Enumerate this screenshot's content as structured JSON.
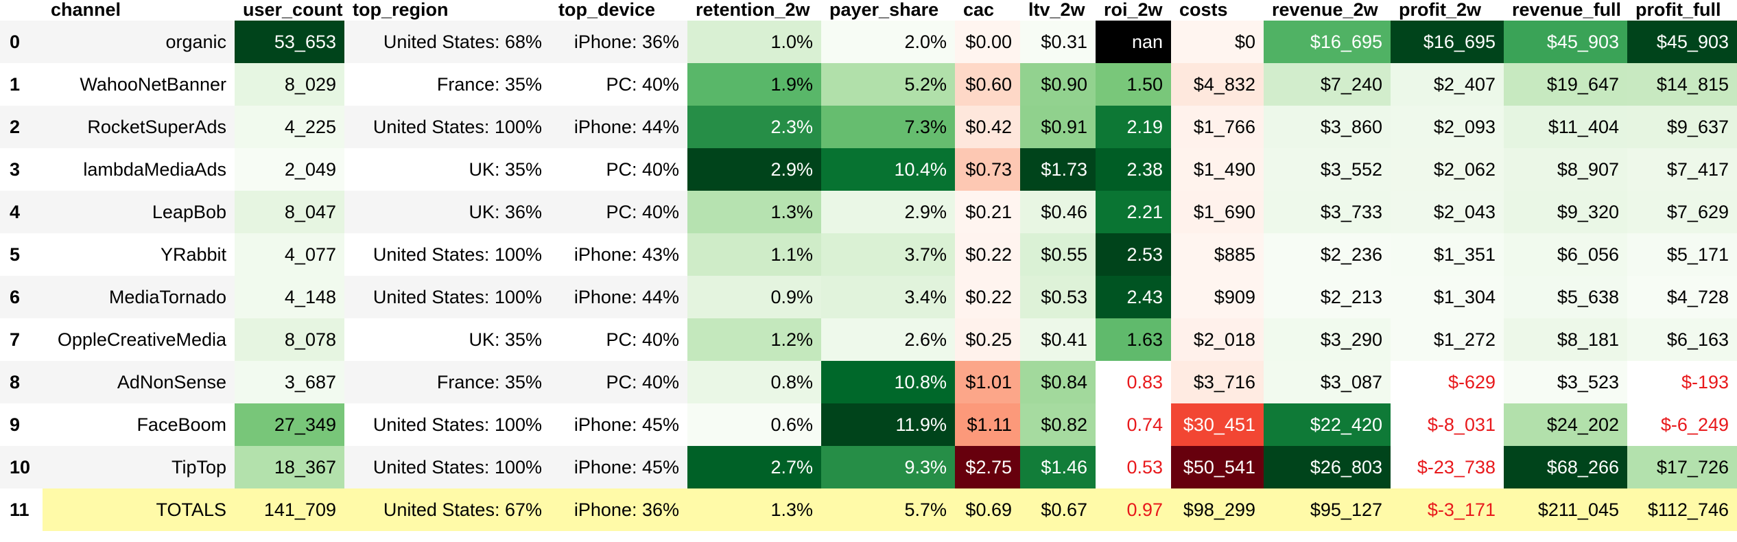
{
  "columns": [
    "",
    "channel",
    "user_count",
    "top_region",
    "top_device",
    "retention_2w",
    "payer_share",
    "cac",
    "ltv_2w",
    "roi_2w",
    "costs",
    "revenue_2w",
    "profit_2w",
    "revenue_full",
    "profit_full"
  ],
  "colors": {
    "header_bg": "#ffffff",
    "row_stripe": "#f5f5f5",
    "totals_bg": "#fffaa8",
    "negative_text": "#e8191c",
    "nan_bg": "#000000",
    "greens": [
      "#f7fcf5",
      "#e5f5e0",
      "#c7e9c0",
      "#a1d99b",
      "#74c476",
      "#41ab5d",
      "#238b45",
      "#006d2c",
      "#00441b"
    ],
    "reds": [
      "#fff5f0",
      "#fee0d2",
      "#fcbba1",
      "#fc9272",
      "#fb6a4a",
      "#ef3b2c",
      "#cb181d",
      "#a50f15",
      "#67000d"
    ]
  },
  "rows": [
    {
      "idx": "0",
      "channel": "organic",
      "user_count": "53_653",
      "top_region": "United States: 68%",
      "top_device": "iPhone: 36%",
      "retention_2w": "1.0%",
      "payer_share": "2.0%",
      "cac": "$0.00",
      "ltv_2w": "$0.31",
      "roi_2w": "nan",
      "costs": "$0",
      "revenue_2w": "$16_695",
      "profit_2w": "$16_695",
      "revenue_full": "$45_903",
      "profit_full": "$45_903"
    },
    {
      "idx": "1",
      "channel": "WahooNetBanner",
      "user_count": "8_029",
      "top_region": "France: 35%",
      "top_device": "PC: 40%",
      "retention_2w": "1.9%",
      "payer_share": "5.2%",
      "cac": "$0.60",
      "ltv_2w": "$0.90",
      "roi_2w": "1.50",
      "costs": "$4_832",
      "revenue_2w": "$7_240",
      "profit_2w": "$2_407",
      "revenue_full": "$19_647",
      "profit_full": "$14_815"
    },
    {
      "idx": "2",
      "channel": "RocketSuperAds",
      "user_count": "4_225",
      "top_region": "United States: 100%",
      "top_device": "iPhone: 44%",
      "retention_2w": "2.3%",
      "payer_share": "7.3%",
      "cac": "$0.42",
      "ltv_2w": "$0.91",
      "roi_2w": "2.19",
      "costs": "$1_766",
      "revenue_2w": "$3_860",
      "profit_2w": "$2_093",
      "revenue_full": "$11_404",
      "profit_full": "$9_637"
    },
    {
      "idx": "3",
      "channel": "lambdaMediaAds",
      "user_count": "2_049",
      "top_region": "UK: 35%",
      "top_device": "PC: 40%",
      "retention_2w": "2.9%",
      "payer_share": "10.4%",
      "cac": "$0.73",
      "ltv_2w": "$1.73",
      "roi_2w": "2.38",
      "costs": "$1_490",
      "revenue_2w": "$3_552",
      "profit_2w": "$2_062",
      "revenue_full": "$8_907",
      "profit_full": "$7_417"
    },
    {
      "idx": "4",
      "channel": "LeapBob",
      "user_count": "8_047",
      "top_region": "UK: 36%",
      "top_device": "PC: 40%",
      "retention_2w": "1.3%",
      "payer_share": "2.9%",
      "cac": "$0.21",
      "ltv_2w": "$0.46",
      "roi_2w": "2.21",
      "costs": "$1_690",
      "revenue_2w": "$3_733",
      "profit_2w": "$2_043",
      "revenue_full": "$9_320",
      "profit_full": "$7_629"
    },
    {
      "idx": "5",
      "channel": "YRabbit",
      "user_count": "4_077",
      "top_region": "United States: 100%",
      "top_device": "iPhone: 43%",
      "retention_2w": "1.1%",
      "payer_share": "3.7%",
      "cac": "$0.22",
      "ltv_2w": "$0.55",
      "roi_2w": "2.53",
      "costs": "$885",
      "revenue_2w": "$2_236",
      "profit_2w": "$1_351",
      "revenue_full": "$6_056",
      "profit_full": "$5_171"
    },
    {
      "idx": "6",
      "channel": "MediaTornado",
      "user_count": "4_148",
      "top_region": "United States: 100%",
      "top_device": "iPhone: 44%",
      "retention_2w": "0.9%",
      "payer_share": "3.4%",
      "cac": "$0.22",
      "ltv_2w": "$0.53",
      "roi_2w": "2.43",
      "costs": "$909",
      "revenue_2w": "$2_213",
      "profit_2w": "$1_304",
      "revenue_full": "$5_638",
      "profit_full": "$4_728"
    },
    {
      "idx": "7",
      "channel": "OppleCreativeMedia",
      "user_count": "8_078",
      "top_region": "UK: 35%",
      "top_device": "PC: 40%",
      "retention_2w": "1.2%",
      "payer_share": "2.6%",
      "cac": "$0.25",
      "ltv_2w": "$0.41",
      "roi_2w": "1.63",
      "costs": "$2_018",
      "revenue_2w": "$3_290",
      "profit_2w": "$1_272",
      "revenue_full": "$8_181",
      "profit_full": "$6_163"
    },
    {
      "idx": "8",
      "channel": "AdNonSense",
      "user_count": "3_687",
      "top_region": "France: 35%",
      "top_device": "PC: 40%",
      "retention_2w": "0.8%",
      "payer_share": "10.8%",
      "cac": "$1.01",
      "ltv_2w": "$0.84",
      "roi_2w": "0.83",
      "costs": "$3_716",
      "revenue_2w": "$3_087",
      "profit_2w": "$-629",
      "revenue_full": "$3_523",
      "profit_full": "$-193"
    },
    {
      "idx": "9",
      "channel": "FaceBoom",
      "user_count": "27_349",
      "top_region": "United States: 100%",
      "top_device": "iPhone: 45%",
      "retention_2w": "0.6%",
      "payer_share": "11.9%",
      "cac": "$1.11",
      "ltv_2w": "$0.82",
      "roi_2w": "0.74",
      "costs": "$30_451",
      "revenue_2w": "$22_420",
      "profit_2w": "$-8_031",
      "revenue_full": "$24_202",
      "profit_full": "$-6_249"
    },
    {
      "idx": "10",
      "channel": "TipTop",
      "user_count": "18_367",
      "top_region": "United States: 100%",
      "top_device": "iPhone: 45%",
      "retention_2w": "2.7%",
      "payer_share": "9.3%",
      "cac": "$2.75",
      "ltv_2w": "$1.46",
      "roi_2w": "0.53",
      "costs": "$50_541",
      "revenue_2w": "$26_803",
      "profit_2w": "$-23_738",
      "revenue_full": "$68_266",
      "profit_full": "$17_726"
    },
    {
      "idx": "11",
      "channel": "TOTALS",
      "user_count": "141_709",
      "top_region": "United States: 67%",
      "top_device": "iPhone: 36%",
      "retention_2w": "1.3%",
      "payer_share": "5.7%",
      "cac": "$0.69",
      "ltv_2w": "$0.67",
      "roi_2w": "0.97",
      "costs": "$98_299",
      "revenue_2w": "$95_127",
      "profit_2w": "$-3_171",
      "revenue_full": "$211_045",
      "profit_full": "$112_746"
    }
  ]
}
